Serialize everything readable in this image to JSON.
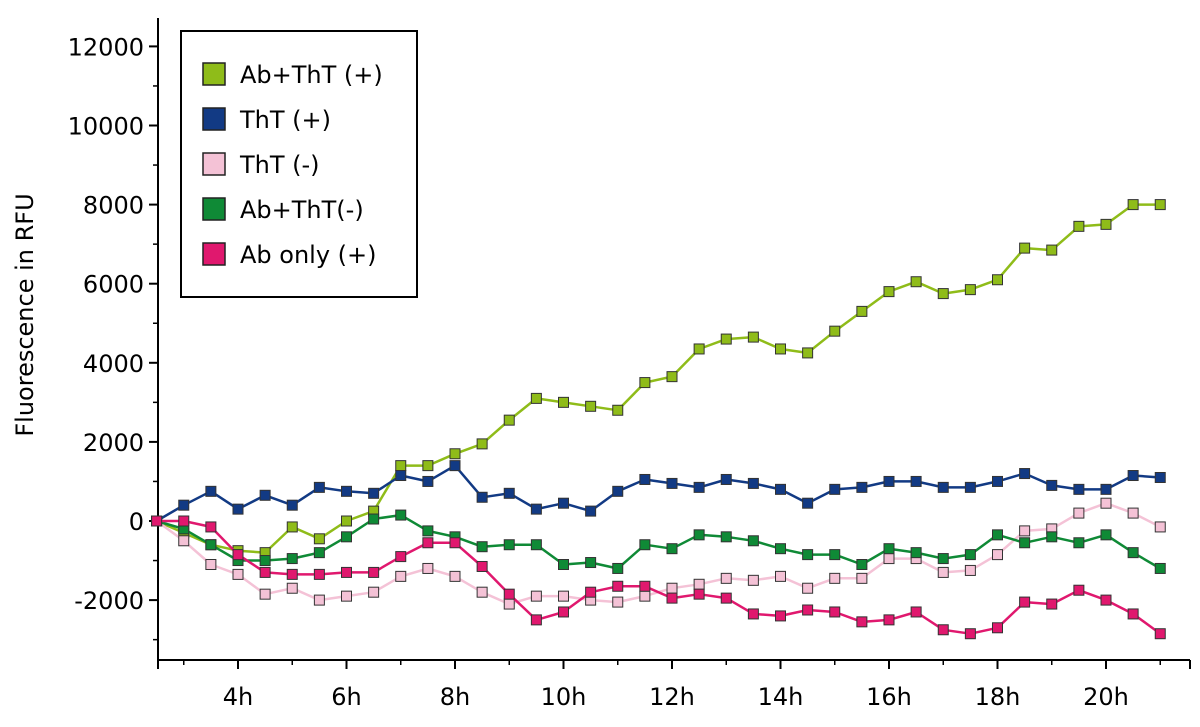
{
  "chart_data": {
    "type": "line",
    "title": "",
    "xlabel": "",
    "ylabel": "Fluorescence in RFU",
    "ylim": [
      -3500,
      12500
    ],
    "xlim": [
      2.0,
      21.7
    ],
    "yticks": [
      12000,
      10000,
      8000,
      6000,
      4000,
      2000,
      0,
      -2000
    ],
    "ytick_labels": [
      "12000",
      "10000",
      "8000",
      "6000",
      "4000",
      "2000",
      "0",
      "-2000"
    ],
    "xticks": [
      4,
      6,
      8,
      10,
      12,
      14,
      16,
      18,
      20
    ],
    "xtick_labels": [
      "4h",
      "6h",
      "8h",
      "10h",
      "12h",
      "14h",
      "16h",
      "18h",
      "20h"
    ],
    "grid": false,
    "legend_position": "top-left",
    "x": [
      2.5,
      3.0,
      3.5,
      4.0,
      4.5,
      5.0,
      5.5,
      6.0,
      6.5,
      7.0,
      7.5,
      8.0,
      8.5,
      9.0,
      9.5,
      10.0,
      10.5,
      11.0,
      11.5,
      12.0,
      12.5,
      13.0,
      13.5,
      14.0,
      14.5,
      15.0,
      15.5,
      16.0,
      16.5,
      17.0,
      17.5,
      18.0,
      18.5,
      19.0,
      19.5,
      20.0,
      20.5,
      21.0
    ],
    "series": [
      {
        "name": "Ab+ThT (+)",
        "color": "#8fbc19",
        "values": [
          0,
          -300,
          -600,
          -750,
          -800,
          -150,
          -450,
          0,
          250,
          1400,
          1400,
          1700,
          1950,
          2550,
          3100,
          3000,
          2900,
          2800,
          3500,
          3650,
          4350,
          4600,
          4650,
          4350,
          4250,
          4800,
          5300,
          5800,
          6050,
          5750,
          5850,
          6100,
          6900,
          6850,
          7450,
          7500,
          8000,
          8000
        ]
      },
      {
        "name": "ThT (+)",
        "color": "#123a84",
        "values": [
          0,
          400,
          750,
          300,
          650,
          400,
          850,
          750,
          700,
          1150,
          1000,
          1400,
          600,
          700,
          300,
          450,
          250,
          750,
          1050,
          950,
          850,
          1050,
          950,
          800,
          450,
          800,
          850,
          1000,
          1000,
          850,
          850,
          1000,
          1200,
          900,
          800,
          800,
          1150,
          1100
        ]
      },
      {
        "name": "ThT (-)",
        "color": "#f4c2d6",
        "values": [
          0,
          -500,
          -1100,
          -1350,
          -1850,
          -1700,
          -2000,
          -1900,
          -1800,
          -1400,
          -1200,
          -1400,
          -1800,
          -2100,
          -1900,
          -1900,
          -2000,
          -2050,
          -1900,
          -1700,
          -1600,
          -1450,
          -1500,
          -1400,
          -1700,
          -1450,
          -1450,
          -950,
          -950,
          -1300,
          -1250,
          -850,
          -250,
          -200,
          200,
          450,
          200,
          -150
        ]
      },
      {
        "name": "Ab+ThT(-)",
        "color": "#0f8a36",
        "values": [
          0,
          -200,
          -600,
          -1000,
          -1000,
          -950,
          -800,
          -400,
          50,
          150,
          -250,
          -400,
          -650,
          -600,
          -600,
          -1100,
          -1050,
          -1200,
          -600,
          -700,
          -350,
          -400,
          -500,
          -700,
          -850,
          -850,
          -1100,
          -700,
          -800,
          -950,
          -850,
          -350,
          -550,
          -400,
          -550,
          -350,
          -800,
          -1200
        ]
      },
      {
        "name": "Ab only (+)",
        "color": "#e0186e",
        "values": [
          0,
          0,
          -150,
          -850,
          -1300,
          -1350,
          -1350,
          -1300,
          -1300,
          -900,
          -550,
          -550,
          -1150,
          -1850,
          -2500,
          -2300,
          -1800,
          -1650,
          -1650,
          -1950,
          -1850,
          -1950,
          -2350,
          -2400,
          -2250,
          -2300,
          -2550,
          -2500,
          -2300,
          -2750,
          -2850,
          -2700,
          -2050,
          -2100,
          -1750,
          -2000,
          -2350,
          -2850
        ]
      }
    ]
  }
}
